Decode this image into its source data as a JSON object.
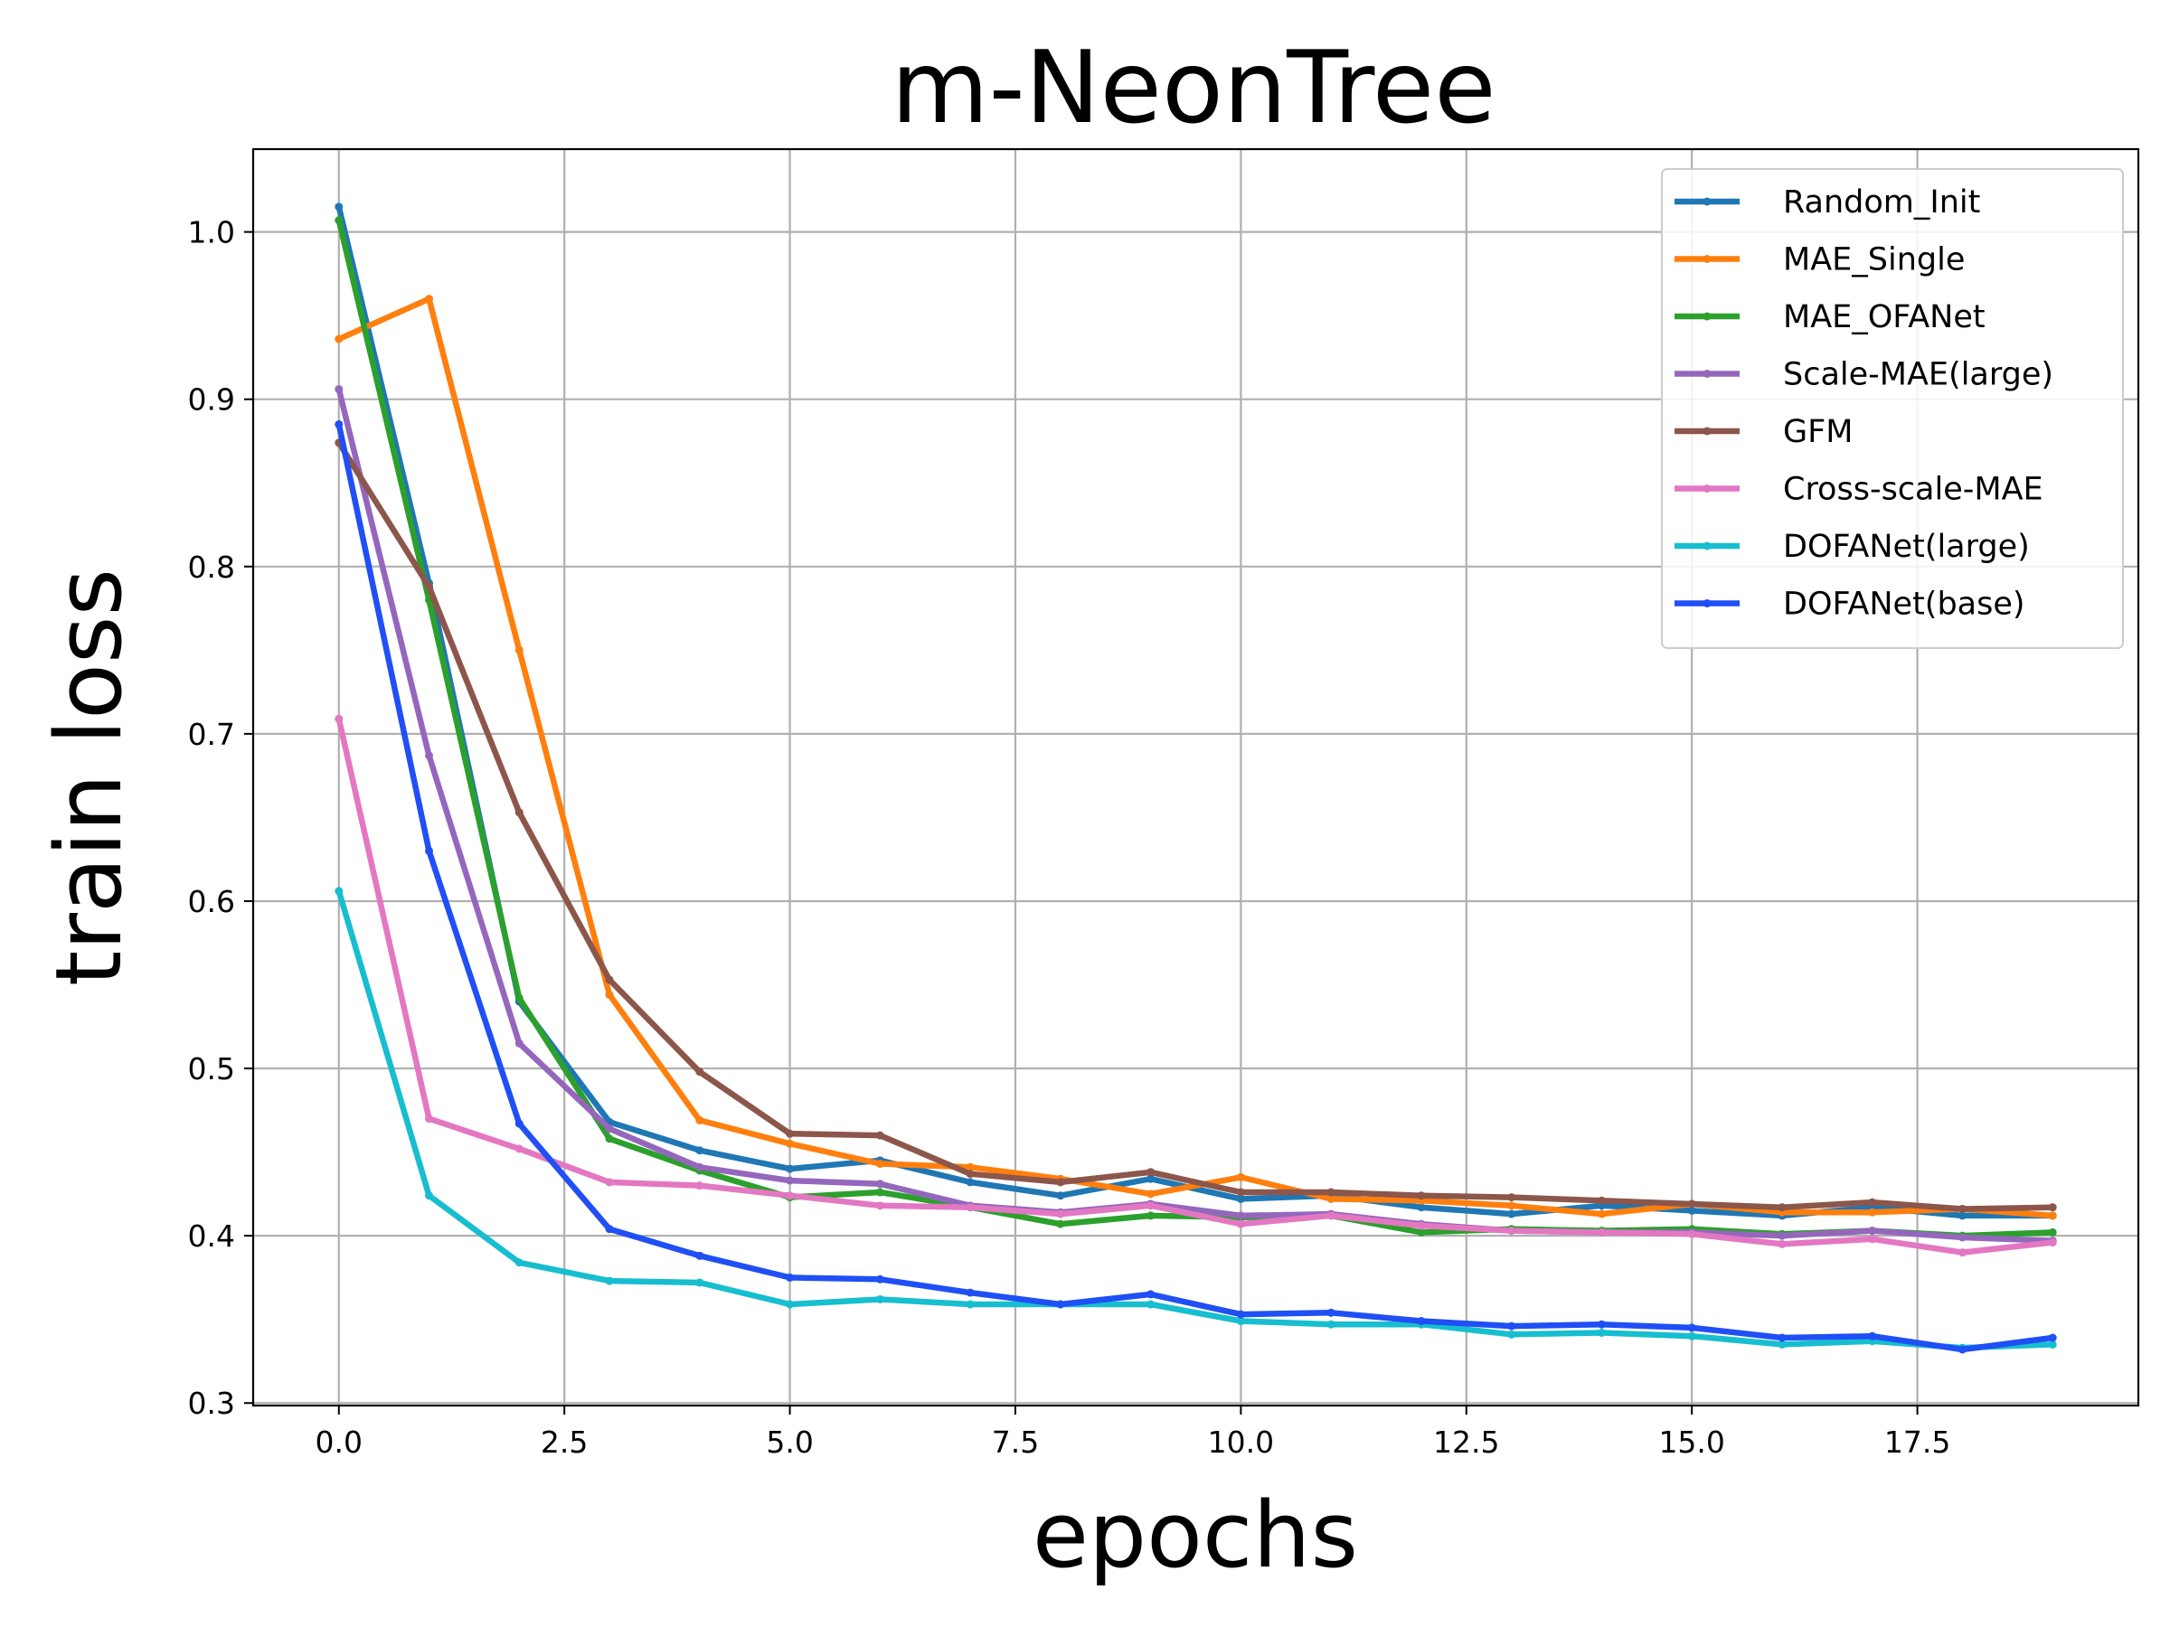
{
  "chart_data": {
    "type": "line",
    "title": "m-NeonTree",
    "xlabel": "epochs",
    "ylabel": "train loss",
    "xlim": [
      -0.95,
      19.95
    ],
    "ylim": [
      0.2985,
      1.0495
    ],
    "x_ticks": [
      0.0,
      2.5,
      5.0,
      7.5,
      10.0,
      12.5,
      15.0,
      17.5
    ],
    "x_tick_labels": [
      "0.0",
      "2.5",
      "5.0",
      "7.5",
      "10.0",
      "12.5",
      "15.0",
      "17.5"
    ],
    "y_ticks": [
      0.3,
      0.4,
      0.5,
      0.6,
      0.7,
      0.8,
      0.9,
      1.0
    ],
    "y_tick_labels": [
      "0.3",
      "0.4",
      "0.5",
      "0.6",
      "0.7",
      "0.8",
      "0.9",
      "1.0"
    ],
    "grid": true,
    "legend_position": "top-right",
    "x": [
      0,
      1,
      2,
      3,
      4,
      5,
      6,
      7,
      8,
      9,
      10,
      11,
      12,
      13,
      14,
      15,
      16,
      17,
      18,
      19
    ],
    "series": [
      {
        "name": "Random_Init",
        "color": "#1f77b4",
        "values": [
          1.015,
          0.79,
          0.54,
          0.468,
          0.451,
          0.44,
          0.445,
          0.432,
          0.424,
          0.434,
          0.422,
          0.424,
          0.417,
          0.413,
          0.418,
          0.415,
          0.412,
          0.417,
          0.412,
          0.412
        ]
      },
      {
        "name": "MAE_Single",
        "color": "#ff7f0e",
        "values": [
          0.936,
          0.96,
          0.75,
          0.544,
          0.469,
          0.455,
          0.443,
          0.441,
          0.434,
          0.425,
          0.435,
          0.422,
          0.421,
          0.418,
          0.413,
          0.419,
          0.414,
          0.414,
          0.416,
          0.412
        ]
      },
      {
        "name": "MAE_OFANet",
        "color": "#2ca02c",
        "values": [
          1.007,
          0.78,
          0.542,
          0.458,
          0.439,
          0.423,
          0.426,
          0.417,
          0.407,
          0.412,
          0.411,
          0.412,
          0.402,
          0.404,
          0.403,
          0.404,
          0.401,
          0.403,
          0.4,
          0.402
        ]
      },
      {
        "name": "Scale-MAE(large)",
        "color": "#9467bd",
        "values": [
          0.906,
          0.687,
          0.515,
          0.464,
          0.441,
          0.433,
          0.431,
          0.418,
          0.414,
          0.419,
          0.412,
          0.413,
          0.407,
          0.403,
          0.402,
          0.402,
          0.4,
          0.403,
          0.399,
          0.397
        ]
      },
      {
        "name": "GFM",
        "color": "#8c564b",
        "values": [
          0.874,
          0.788,
          0.653,
          0.553,
          0.498,
          0.461,
          0.46,
          0.437,
          0.432,
          0.438,
          0.426,
          0.426,
          0.424,
          0.423,
          0.421,
          0.419,
          0.417,
          0.42,
          0.416,
          0.417
        ]
      },
      {
        "name": "Cross-scale-MAE",
        "color": "#e377c2",
        "values": [
          0.709,
          0.47,
          0.452,
          0.432,
          0.43,
          0.424,
          0.418,
          0.417,
          0.413,
          0.418,
          0.407,
          0.412,
          0.406,
          0.403,
          0.402,
          0.401,
          0.395,
          0.398,
          0.39,
          0.396
        ]
      },
      {
        "name": "DOFANet(large)",
        "color": "#17becf",
        "values": [
          0.606,
          0.424,
          0.384,
          0.373,
          0.372,
          0.359,
          0.362,
          0.359,
          0.359,
          0.359,
          0.349,
          0.347,
          0.347,
          0.341,
          0.342,
          0.34,
          0.335,
          0.337,
          0.333,
          0.335
        ]
      },
      {
        "name": "DOFANet(base)",
        "color": "#1f4ff5",
        "values": [
          0.885,
          0.63,
          0.467,
          0.404,
          0.388,
          0.375,
          0.374,
          0.366,
          0.359,
          0.365,
          0.353,
          0.354,
          0.349,
          0.346,
          0.347,
          0.345,
          0.339,
          0.34,
          0.332,
          0.339
        ]
      }
    ]
  }
}
